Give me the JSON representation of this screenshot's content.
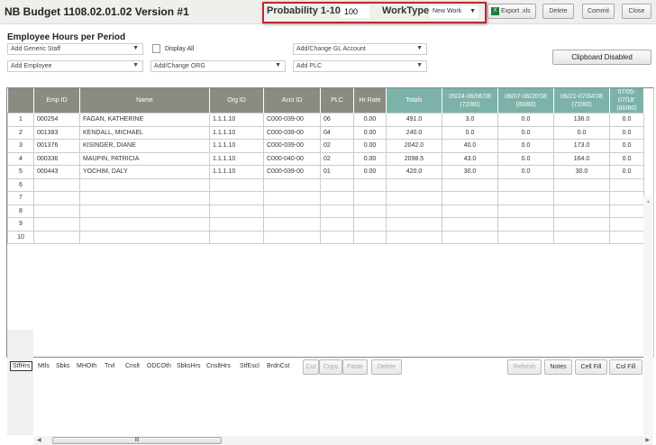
{
  "header": {
    "title": "NB Budget 1108.02.01.02 Version #1",
    "probability_label": "Probability 1-100",
    "probability_value": "100",
    "worktype_label": "WorkType",
    "worktype_value": "New Work",
    "export_label": "Export .xls",
    "delete_label": "Delete",
    "commit_label": "Commit",
    "close_label": "Close"
  },
  "toolbar": {
    "section_title": "Employee Hours per Period",
    "add_generic_staff": "Add Generic Staff",
    "display_all": "Display All",
    "display_all_checked": false,
    "gl_account": "Add/Change GL Account",
    "add_employee": "Add Employee",
    "change_org": "Add/Change ORG",
    "add_plc": "Add PLC",
    "clipboard": "Clipboard Disabled"
  },
  "grid": {
    "columns": [
      "",
      "Emp ID",
      "Name",
      "Org ID",
      "Acct ID",
      "PLC",
      "Hr Rate",
      "Totals",
      "05/24-06/06’08 (72/80)",
      "06/07-06/20’08 (80/80)",
      "06/21-07/04’08 (72/80)",
      "07/05-07/18’ (80/80)"
    ],
    "rows": [
      [
        "1",
        "000254",
        "FAGAN, KATHERINE",
        "1.1.1.10",
        "C000-039-00",
        "06",
        "0.00",
        "491.0",
        "3.0",
        "0.0",
        "136.0",
        "0.0"
      ],
      [
        "2",
        "001383",
        "KENDALL, MICHAEL",
        "1.1.1.10",
        "C000-039-00",
        "04",
        "0.00",
        "240.0",
        "0.0",
        "0.0",
        "0.0",
        "0.0"
      ],
      [
        "3",
        "001376",
        "KISINGER, DIANE",
        "1.1.1.10",
        "C000-039-00",
        "02",
        "0.00",
        "2042.0",
        "40.0",
        "0.0",
        "173.0",
        "0.0"
      ],
      [
        "4",
        "000336",
        "MAUPIN, PATRICIA",
        "1.1.1.10",
        "C000-040-00",
        "02",
        "0.00",
        "2098.5",
        "43.0",
        "0.0",
        "164.0",
        "0.0"
      ],
      [
        "5",
        "000443",
        "YOCHIM, DALY",
        "1.1.1.10",
        "C000-039-00",
        "01",
        "0.00",
        "420.0",
        "30.0",
        "0.0",
        "30.0",
        "0.0"
      ],
      [
        "6",
        "",
        "",
        "",
        "",
        "",
        "",
        "",
        "",
        "",
        "",
        ""
      ],
      [
        "7",
        "",
        "",
        "",
        "",
        "",
        "",
        "",
        "",
        "",
        "",
        ""
      ],
      [
        "8",
        "",
        "",
        "",
        "",
        "",
        "",
        "",
        "",
        "",
        "",
        ""
      ],
      [
        "9",
        "",
        "",
        "",
        "",
        "",
        "",
        "",
        "",
        "",
        "",
        ""
      ],
      [
        "10",
        "",
        "",
        "",
        "",
        "",
        "",
        "",
        "",
        "",
        "",
        ""
      ]
    ]
  },
  "bottom": {
    "tabs": [
      "StfHrs",
      "Mtls",
      "Sbks",
      "MHOth",
      "Trvl",
      "Cnslt",
      "ODCOth",
      "SbksHrs",
      "CnsltHrs",
      "StfEscl",
      "BrdnCst"
    ],
    "active_tab": "StfHrs",
    "cut": "Cut",
    "copy": "Copy",
    "paste": "Paste",
    "delete": "Delete",
    "refresh": "Refresh",
    "notes": "Notes",
    "cell_fill": "Cell Fill",
    "col_fill": "Col Fill",
    "scroll_thumb": "III"
  },
  "colors": {
    "highlight_border": "#c0272d",
    "header_gray": "#8c8b83",
    "header_teal": "#7cb2a8"
  }
}
